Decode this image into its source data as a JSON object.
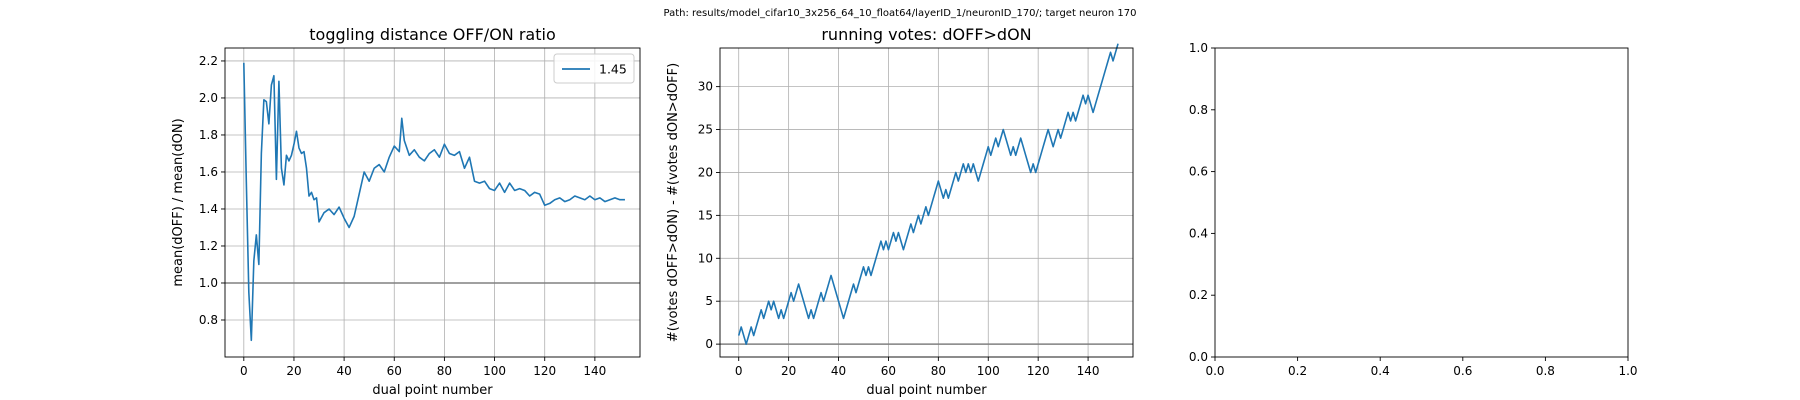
{
  "figure": {
    "suptitle": "Path: results/model_cifar10_3x256_64_10_float64/layerID_1/neuronID_170/; target neuron 170"
  },
  "chart_data": [
    {
      "type": "line",
      "title": "toggling distance OFF/ON ratio",
      "xlabel": "dual point number",
      "ylabel": "mean(dOFF) / mean(dON)",
      "xlim": [
        -7.5,
        158
      ],
      "ylim": [
        0.6,
        2.27
      ],
      "xticks": [
        0,
        20,
        40,
        60,
        80,
        100,
        120,
        140
      ],
      "yticks": [
        0.8,
        1.0,
        1.2,
        1.4,
        1.6,
        1.8,
        2.0,
        2.2
      ],
      "ytick_labels": [
        "0.8",
        "1.0",
        "1.2",
        "1.4",
        "1.6",
        "1.8",
        "2.0",
        "2.2"
      ],
      "grid": true,
      "legend": {
        "position": "top-right",
        "entries": [
          "1.45"
        ]
      },
      "hline": {
        "y": 1.0,
        "color": "#808080"
      },
      "series": [
        {
          "name": "1.45",
          "color": "#1f77b4",
          "x": [
            0,
            1,
            2,
            3,
            4,
            5,
            6,
            7,
            8,
            9,
            10,
            11,
            12,
            13,
            14,
            15,
            16,
            17,
            18,
            19,
            20,
            21,
            22,
            23,
            24,
            25,
            26,
            27,
            28,
            29,
            30,
            32,
            34,
            36,
            38,
            40,
            42,
            44,
            46,
            48,
            50,
            52,
            54,
            56,
            58,
            60,
            62,
            63,
            64,
            66,
            68,
            70,
            72,
            74,
            76,
            78,
            80,
            82,
            84,
            86,
            88,
            90,
            92,
            94,
            96,
            98,
            100,
            102,
            104,
            106,
            108,
            110,
            112,
            114,
            116,
            118,
            120,
            122,
            124,
            126,
            128,
            130,
            132,
            134,
            136,
            138,
            140,
            142,
            144,
            146,
            148,
            150,
            152
          ],
          "values": [
            2.19,
            1.55,
            0.95,
            0.69,
            1.12,
            1.26,
            1.1,
            1.7,
            1.99,
            1.98,
            1.86,
            2.07,
            2.12,
            1.56,
            2.09,
            1.62,
            1.53,
            1.69,
            1.66,
            1.69,
            1.75,
            1.82,
            1.73,
            1.7,
            1.71,
            1.62,
            1.47,
            1.49,
            1.45,
            1.46,
            1.33,
            1.38,
            1.4,
            1.37,
            1.41,
            1.35,
            1.3,
            1.36,
            1.48,
            1.6,
            1.55,
            1.62,
            1.64,
            1.6,
            1.68,
            1.74,
            1.71,
            1.89,
            1.77,
            1.69,
            1.72,
            1.68,
            1.66,
            1.7,
            1.72,
            1.68,
            1.75,
            1.7,
            1.69,
            1.71,
            1.62,
            1.68,
            1.55,
            1.54,
            1.55,
            1.51,
            1.5,
            1.54,
            1.49,
            1.54,
            1.5,
            1.51,
            1.5,
            1.47,
            1.49,
            1.48,
            1.42,
            1.43,
            1.45,
            1.46,
            1.44,
            1.45,
            1.47,
            1.46,
            1.45,
            1.47,
            1.45,
            1.46,
            1.44,
            1.45,
            1.46,
            1.45,
            1.45
          ]
        }
      ]
    },
    {
      "type": "line",
      "title": "running votes: dOFF>dON",
      "xlabel": "dual point number",
      "ylabel": "#(votes dOFF>dON) - #(votes dON>dOFF)",
      "xlim": [
        -7.5,
        158
      ],
      "ylim": [
        -1.5,
        34.5
      ],
      "xticks": [
        0,
        20,
        40,
        60,
        80,
        100,
        120,
        140
      ],
      "yticks": [
        0,
        5,
        10,
        15,
        20,
        25,
        30
      ],
      "ytick_labels": [
        "0",
        "5",
        "10",
        "15",
        "20",
        "25",
        "30"
      ],
      "grid": true,
      "hline": {
        "y": 0,
        "color": "#808080"
      },
      "series": [
        {
          "color": "#1f77b4",
          "x": [
            0,
            1,
            2,
            3,
            4,
            5,
            6,
            7,
            8,
            9,
            10,
            11,
            12,
            13,
            14,
            15,
            16,
            17,
            18,
            19,
            20,
            21,
            22,
            23,
            24,
            25,
            26,
            27,
            28,
            29,
            30,
            31,
            32,
            33,
            34,
            35,
            36,
            37,
            38,
            39,
            40,
            41,
            42,
            43,
            44,
            45,
            46,
            47,
            48,
            49,
            50,
            51,
            52,
            53,
            54,
            55,
            56,
            57,
            58,
            59,
            60,
            61,
            62,
            63,
            64,
            65,
            66,
            67,
            68,
            69,
            70,
            71,
            72,
            73,
            74,
            75,
            76,
            77,
            78,
            79,
            80,
            81,
            82,
            83,
            84,
            85,
            86,
            87,
            88,
            89,
            90,
            91,
            92,
            93,
            94,
            95,
            96,
            97,
            98,
            99,
            100,
            101,
            102,
            103,
            104,
            105,
            106,
            107,
            108,
            109,
            110,
            111,
            112,
            113,
            114,
            115,
            116,
            117,
            118,
            119,
            120,
            121,
            122,
            123,
            124,
            125,
            126,
            127,
            128,
            129,
            130,
            131,
            132,
            133,
            134,
            135,
            136,
            137,
            138,
            139,
            140,
            141,
            142,
            143,
            144,
            145,
            146,
            147,
            148,
            149,
            150,
            151,
            152
          ],
          "values": [
            1,
            2,
            1,
            0,
            1,
            2,
            1,
            2,
            3,
            4,
            3,
            4,
            5,
            4,
            5,
            4,
            3,
            4,
            3,
            4,
            5,
            6,
            5,
            6,
            7,
            6,
            5,
            4,
            3,
            4,
            3,
            4,
            5,
            6,
            5,
            6,
            7,
            8,
            7,
            6,
            5,
            4,
            3,
            4,
            5,
            6,
            7,
            6,
            7,
            8,
            9,
            8,
            9,
            8,
            9,
            10,
            11,
            12,
            11,
            12,
            11,
            12,
            13,
            12,
            13,
            12,
            11,
            12,
            13,
            14,
            13,
            14,
            15,
            14,
            15,
            16,
            15,
            16,
            17,
            18,
            19,
            18,
            17,
            18,
            17,
            18,
            19,
            20,
            19,
            20,
            21,
            20,
            21,
            20,
            21,
            20,
            19,
            20,
            21,
            22,
            23,
            22,
            23,
            24,
            23,
            24,
            25,
            24,
            23,
            22,
            23,
            22,
            23,
            24,
            23,
            22,
            21,
            20,
            21,
            20,
            21,
            22,
            23,
            24,
            25,
            24,
            23,
            24,
            25,
            24,
            25,
            26,
            27,
            26,
            27,
            26,
            27,
            28,
            29,
            28,
            29,
            28,
            27,
            28,
            29,
            30,
            31,
            32,
            33,
            34,
            33,
            34,
            35
          ]
        }
      ]
    },
    {
      "type": "line",
      "title": "",
      "xlabel": "",
      "ylabel": "",
      "xlim": [
        0,
        1
      ],
      "ylim": [
        0,
        1
      ],
      "xticks": [
        0,
        0.2,
        0.4,
        0.6,
        0.8,
        1.0
      ],
      "yticks": [
        0,
        0.2,
        0.4,
        0.6,
        0.8,
        1.0
      ],
      "ytick_labels": [
        "0.0",
        "0.2",
        "0.4",
        "0.6",
        "0.8",
        "1.0"
      ],
      "grid": false,
      "series": []
    }
  ]
}
